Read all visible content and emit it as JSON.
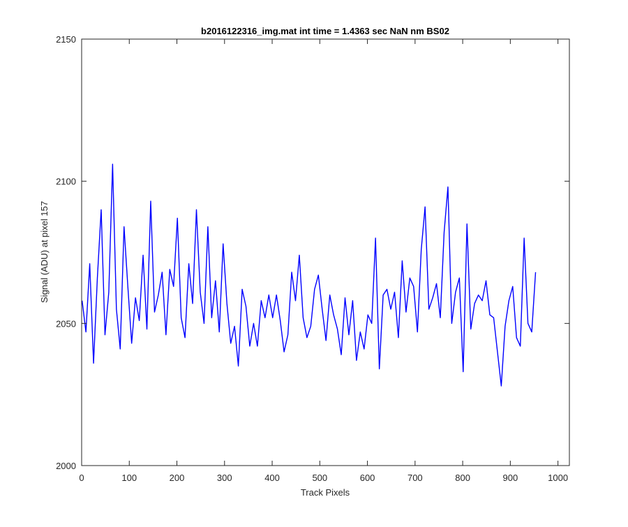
{
  "chart_data": {
    "type": "line",
    "title": "b2016122316_img.mat int time = 1.4363 sec  NaN nm BS02",
    "xlabel": "Track Pixels",
    "ylabel": "Signal (ADU) at pixel 157",
    "xlim": [
      0,
      1024
    ],
    "ylim": [
      2000,
      2150
    ],
    "xticks": [
      0,
      100,
      200,
      300,
      400,
      500,
      600,
      700,
      800,
      900,
      1000
    ],
    "yticks": [
      2000,
      2050,
      2100,
      2150
    ],
    "grid": false,
    "line_color": "#0000ff",
    "series": [
      {
        "x_start": 1,
        "x_step": 8,
        "values": [
          2058,
          2047,
          2071,
          2036,
          2066,
          2090,
          2046,
          2061,
          2106,
          2055,
          2041,
          2084,
          2063,
          2043,
          2059,
          2051,
          2074,
          2048,
          2093,
          2054,
          2060,
          2068,
          2046,
          2069,
          2063,
          2087,
          2052,
          2045,
          2071,
          2057,
          2090,
          2061,
          2050,
          2084,
          2052,
          2065,
          2047,
          2078,
          2057,
          2043,
          2049,
          2035,
          2062,
          2056,
          2042,
          2050,
          2042,
          2058,
          2052,
          2060,
          2052,
          2060,
          2051,
          2040,
          2046,
          2068,
          2058,
          2074,
          2052,
          2045,
          2049,
          2062,
          2067,
          2055,
          2044,
          2060,
          2053,
          2048,
          2039,
          2059,
          2046,
          2058,
          2037,
          2047,
          2041,
          2053,
          2050,
          2080,
          2034,
          2060,
          2062,
          2055,
          2061,
          2045,
          2072,
          2054,
          2066,
          2063,
          2047,
          2076,
          2091,
          2055,
          2059,
          2064,
          2052,
          2082,
          2098,
          2050,
          2061,
          2066,
          2033,
          2085,
          2048,
          2057,
          2060,
          2058,
          2065,
          2053,
          2052,
          2040,
          2028,
          2049,
          2058,
          2063,
          2045,
          2042,
          2080,
          2050,
          2047,
          2068
        ]
      }
    ]
  }
}
